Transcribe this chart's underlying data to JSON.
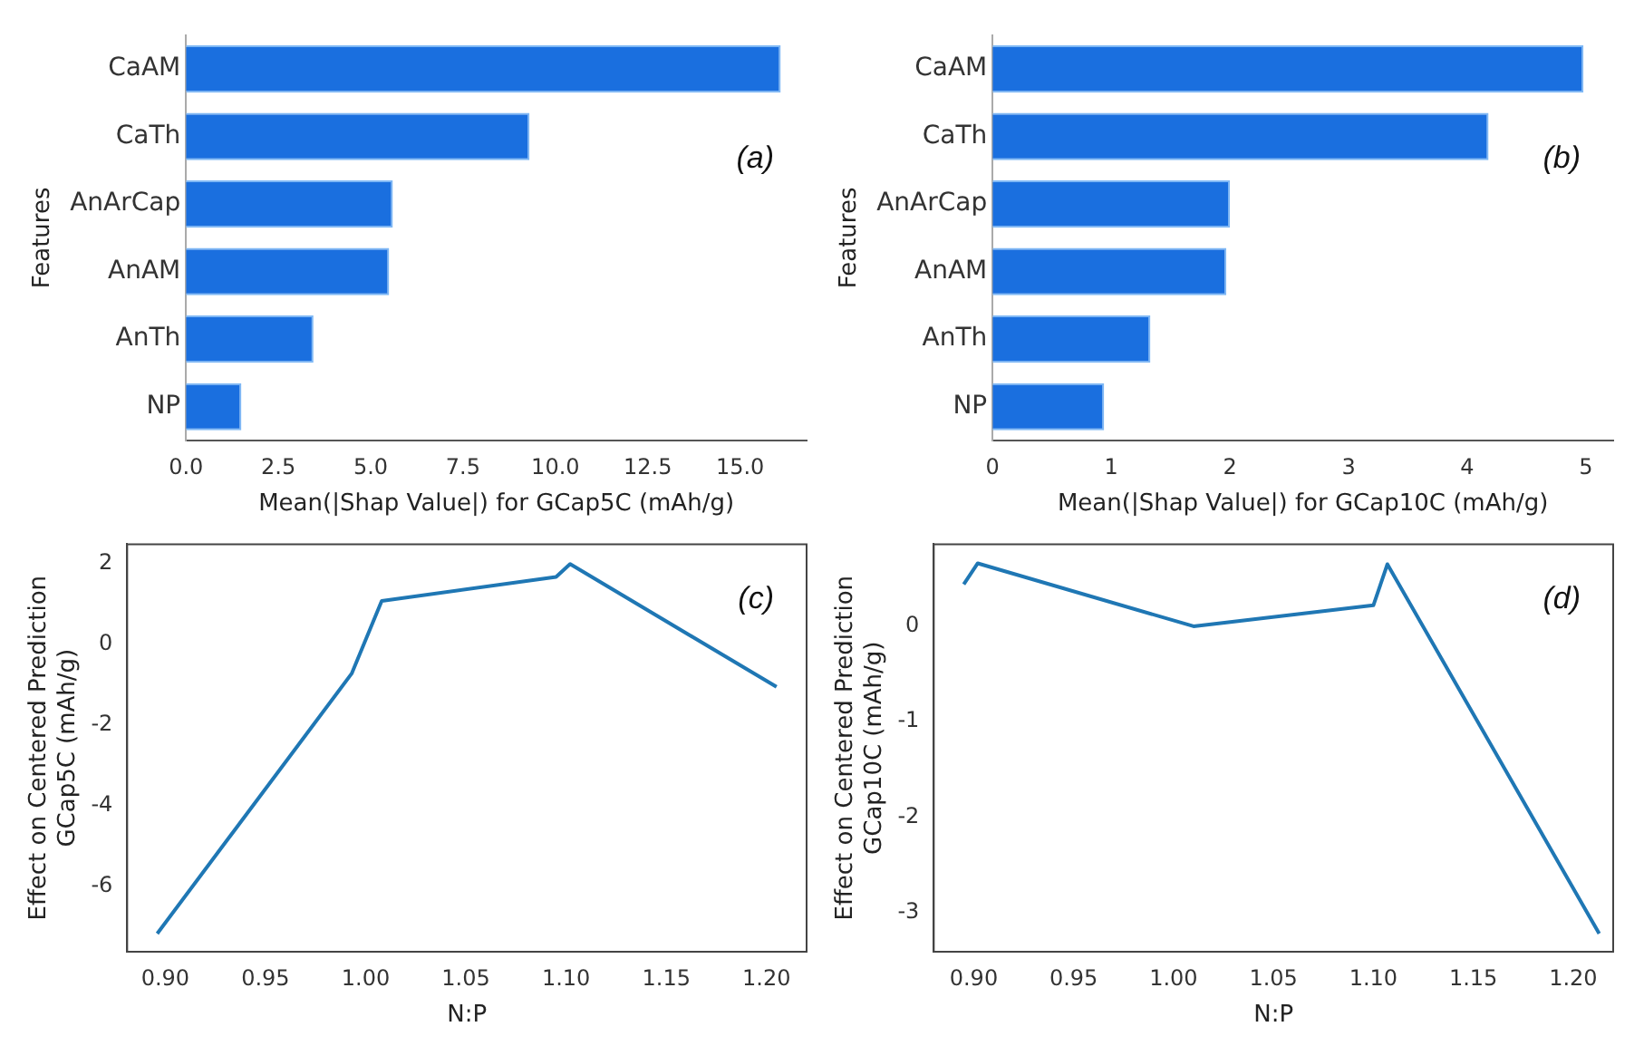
{
  "chart_data": [
    {
      "type": "bar",
      "orientation": "horizontal",
      "categories": [
        "CaAM",
        "CaTh",
        "AnArCap",
        "AnAM",
        "AnTh",
        "NP"
      ],
      "values": [
        16.1,
        9.3,
        5.6,
        5.5,
        3.45,
        1.5
      ],
      "color": "#1a6fdf",
      "xlim": [
        0,
        16.8
      ],
      "xticks": [
        {
          "value": 0,
          "label": "0.0"
        },
        2.5,
        {
          "value": 5,
          "label": "5.0"
        },
        7.5,
        {
          "value": 10,
          "label": "10.0"
        },
        12.5,
        {
          "value": 15,
          "label": "15.0"
        }
      ],
      "xlabel": "Mean(|Shap Value|) for GCap5C (mAh/g)",
      "ylabel": "Features",
      "annotations": [
        "(a)"
      ]
    },
    {
      "type": "bar",
      "orientation": "horizontal",
      "categories": [
        "CaAM",
        "CaTh",
        "AnArCap",
        "AnAM",
        "AnTh",
        "NP"
      ],
      "values": [
        4.98,
        4.18,
        2.0,
        1.97,
        1.33,
        0.94
      ],
      "color": "#1a6fdf",
      "xlim": [
        0,
        5.23
      ],
      "xticks": [
        0,
        1,
        2,
        3,
        4,
        5
      ],
      "xlabel": "Mean(|Shap Value|) for GCap10C (mAh/g)",
      "ylabel": "Features",
      "annotations": [
        "(b)"
      ]
    },
    {
      "type": "line",
      "marker": "none",
      "x": [
        0.896,
        0.993,
        1.008,
        1.095,
        1.102,
        1.205
      ],
      "values": [
        -7.17,
        -0.72,
        1.08,
        1.68,
        2.0,
        -1.05
      ],
      "color": "#1f77b4",
      "xlim": [
        0.881,
        1.22
      ],
      "xticks": [
        {
          "value": 0.9,
          "label": "0.90"
        },
        0.95,
        {
          "value": 1,
          "label": "1.00"
        },
        1.05,
        {
          "value": 1.1,
          "label": "1.10"
        },
        1.15,
        {
          "value": 1.2,
          "label": "1.20"
        }
      ],
      "ylim": [
        -7.62,
        2.49
      ],
      "yticks": [
        -6,
        -4,
        -2,
        0,
        2
      ],
      "xlabel": "N:P",
      "ylabel": "Effect on Centered Prediction\nGCap5C (mAh/g)",
      "annotations": [
        "(c)"
      ]
    },
    {
      "type": "line",
      "marker": "none",
      "x": [
        0.895,
        0.902,
        1.01,
        1.1,
        1.107,
        1.213
      ],
      "values": [
        0.44,
        0.66,
        0,
        0.22,
        0.65,
        -3.22
      ],
      "color": "#1f77b4",
      "xlim": [
        0.88,
        1.22
      ],
      "xticks": [
        {
          "value": 0.9,
          "label": "0.90"
        },
        0.95,
        {
          "value": 1,
          "label": "1.00"
        },
        1.05,
        {
          "value": 1.1,
          "label": "1.10"
        },
        1.15,
        {
          "value": 1.2,
          "label": "1.20"
        }
      ],
      "ylim": [
        -3.41,
        0.86
      ],
      "yticks": [
        -3,
        -2,
        -1,
        0
      ],
      "xlabel": "N:P",
      "ylabel": "Effect on Centered Prediction\nGCap10C (mAh/g)",
      "annotations": [
        "(d)"
      ]
    }
  ]
}
